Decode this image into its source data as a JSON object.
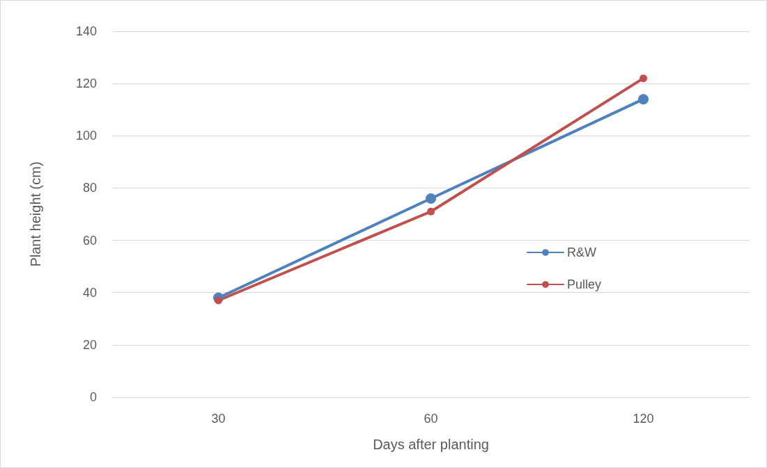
{
  "chart_data": {
    "type": "line",
    "xlabel": "Days after planting",
    "ylabel": "Plant height (cm)",
    "categories": [
      "30",
      "60",
      "120"
    ],
    "series": [
      {
        "name": "R&W",
        "color": "#4f81bd",
        "values": [
          38,
          76,
          114
        ]
      },
      {
        "name": "Pulley",
        "color": "#c0504d",
        "values": [
          37,
          71,
          122
        ]
      }
    ],
    "ylim": [
      0,
      140
    ],
    "yticks": [
      0,
      20,
      40,
      60,
      80,
      100,
      120,
      140
    ],
    "grid": "y",
    "legend": "right",
    "marker": "circle",
    "line_style": "solid"
  }
}
